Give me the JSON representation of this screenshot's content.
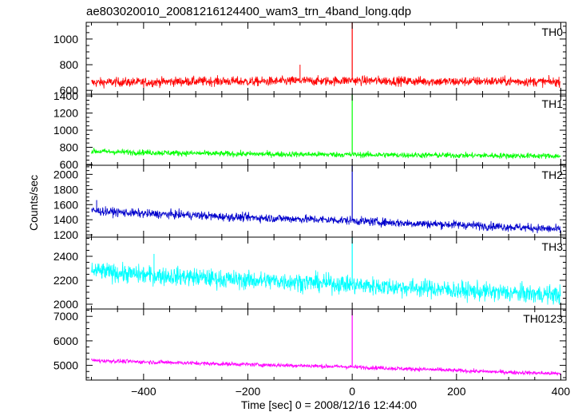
{
  "chart_data": {
    "type": "line",
    "title": "ae803020010_20081216124400_wam3_trn_4band_long.qdp",
    "xlabel": "Time [sec] 0 = 2008/12/16 12:44:00",
    "ylabel": "Counts/sec",
    "xlim": [
      -510,
      410
    ],
    "xticks": [
      -400,
      -200,
      0,
      200,
      400
    ],
    "xtick_labels": [
      "−400",
      "−200",
      "0",
      "200",
      "400"
    ],
    "grid": false,
    "legend": "none",
    "panels": [
      {
        "name": "TH0",
        "color": "#ff0000",
        "ylim": [
          570,
          1130
        ],
        "yticks": [
          600,
          800,
          1000
        ],
        "x": [
          -500,
          -450,
          -400,
          -350,
          -300,
          -250,
          -200,
          -150,
          -100,
          -50,
          -5,
          0,
          5,
          50,
          100,
          150,
          200,
          250,
          300,
          350,
          400
        ],
        "y": [
          660,
          665,
          662,
          668,
          670,
          672,
          668,
          670,
          675,
          672,
          678,
          1130,
          676,
          675,
          672,
          670,
          668,
          672,
          670,
          668,
          665
        ],
        "noise": 26,
        "spikes": [
          {
            "x": -100,
            "y": 800
          }
        ]
      },
      {
        "name": "TH1",
        "color": "#00ff00",
        "ylim": [
          590,
          1420
        ],
        "yticks": [
          600,
          800,
          1000,
          1200,
          1400
        ],
        "x": [
          -500,
          -450,
          -400,
          -350,
          -300,
          -250,
          -200,
          -150,
          -100,
          -50,
          -5,
          0,
          5,
          50,
          100,
          150,
          200,
          250,
          300,
          350,
          400
        ],
        "y": [
          755,
          745,
          740,
          735,
          730,
          725,
          722,
          720,
          718,
          716,
          715,
          1420,
          714,
          712,
          710,
          708,
          706,
          704,
          702,
          700,
          698
        ],
        "noise": 24,
        "spikes": []
      },
      {
        "name": "TH2",
        "color": "#0000cc",
        "ylim": [
          1170,
          2120
        ],
        "yticks": [
          1200,
          1400,
          1600,
          1800,
          2000
        ],
        "x": [
          -500,
          -450,
          -400,
          -350,
          -300,
          -250,
          -200,
          -150,
          -100,
          -50,
          -5,
          0,
          5,
          50,
          100,
          150,
          200,
          250,
          300,
          350,
          400
        ],
        "y": [
          1520,
          1500,
          1480,
          1470,
          1460,
          1440,
          1430,
          1420,
          1410,
          1400,
          1390,
          2120,
          1385,
          1370,
          1355,
          1345,
          1335,
          1320,
          1305,
          1290,
          1270
        ],
        "noise": 40,
        "spikes": [
          {
            "x": -490,
            "y": 1660
          }
        ]
      },
      {
        "name": "TH3",
        "color": "#00ffff",
        "ylim": [
          1960,
          2560
        ],
        "yticks": [
          2000,
          2200,
          2400
        ],
        "x": [
          -500,
          -450,
          -400,
          -350,
          -300,
          -250,
          -200,
          -150,
          -100,
          -50,
          -5,
          0,
          5,
          50,
          100,
          150,
          200,
          250,
          300,
          350,
          400
        ],
        "y": [
          2280,
          2260,
          2245,
          2235,
          2225,
          2210,
          2200,
          2195,
          2185,
          2175,
          2165,
          2560,
          2160,
          2150,
          2140,
          2130,
          2115,
          2105,
          2095,
          2085,
          2080
        ],
        "noise": 55,
        "spikes": [
          {
            "x": -380,
            "y": 2420
          }
        ]
      },
      {
        "name": "TH0123",
        "color": "#ff00ff",
        "ylim": [
          4400,
          7300
        ],
        "yticks": [
          5000,
          6000,
          7000
        ],
        "x": [
          -500,
          -450,
          -400,
          -350,
          -300,
          -250,
          -200,
          -150,
          -100,
          -50,
          -5,
          0,
          5,
          50,
          100,
          150,
          200,
          250,
          300,
          350,
          400
        ],
        "y": [
          5200,
          5170,
          5140,
          5120,
          5090,
          5060,
          5040,
          5010,
          4990,
          4960,
          4940,
          7300,
          4930,
          4900,
          4860,
          4830,
          4790,
          4750,
          4720,
          4690,
          4660
        ],
        "noise": 60,
        "spikes": []
      }
    ]
  }
}
